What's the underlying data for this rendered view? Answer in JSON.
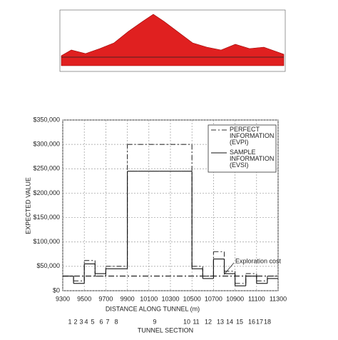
{
  "chart_data": {
    "type": "step",
    "x_label": "DISTANCE ALONG TUNNEL (m)",
    "y_label": "EXPECTED VALUE",
    "section_label": "TUNNEL SECTION",
    "sections": [
      "1",
      "2",
      "3",
      "4",
      "5",
      "6",
      "7",
      "8",
      "9",
      "10",
      "11",
      "12",
      "13",
      "14",
      "15",
      "16",
      "17",
      "18"
    ],
    "annotation": "Exploration cost",
    "exploration_cost": 30000,
    "x": [
      9300,
      9400,
      9500,
      9600,
      9700,
      9800,
      9900,
      10000,
      10100,
      10200,
      10300,
      10400,
      10500,
      10600,
      10700,
      10800,
      10900,
      11000,
      11100,
      11200,
      11300
    ],
    "series": [
      {
        "name": "PERFECT INFORMATION (EVPI)",
        "style": "dashdot",
        "color": "#333",
        "values": [
          30000,
          20000,
          62000,
          30000,
          50000,
          50000,
          300000,
          300000,
          300000,
          300000,
          300000,
          300000,
          50000,
          30000,
          80000,
          40000,
          15000,
          35000,
          20000,
          30000,
          30000
        ]
      },
      {
        "name": "SAMPLE INFORMATION (EVSI)",
        "style": "solid",
        "color": "#111",
        "values": [
          30000,
          15000,
          55000,
          35000,
          45000,
          45000,
          245000,
          245000,
          245000,
          245000,
          245000,
          245000,
          45000,
          25000,
          65000,
          35000,
          10000,
          30000,
          15000,
          25000,
          25000
        ]
      }
    ],
    "xlim": [
      9300,
      11300
    ],
    "xticks": [
      9300,
      9500,
      9700,
      9900,
      10100,
      10300,
      10500,
      10700,
      10900,
      11100,
      11300
    ],
    "ylim": [
      0,
      350000
    ],
    "yticks": [
      {
        "value": 0,
        "label": "$0"
      },
      {
        "value": 50000,
        "label": "$50,000"
      },
      {
        "value": 100000,
        "label": "$100,000"
      },
      {
        "value": 150000,
        "label": "$150,000"
      },
      {
        "value": 200000,
        "label": "$200,000"
      },
      {
        "value": 250000,
        "label": "$250,000"
      },
      {
        "value": 300000,
        "label": "$300,000"
      },
      {
        "value": 350000,
        "label": "$350,000"
      }
    ],
    "grid": true
  }
}
